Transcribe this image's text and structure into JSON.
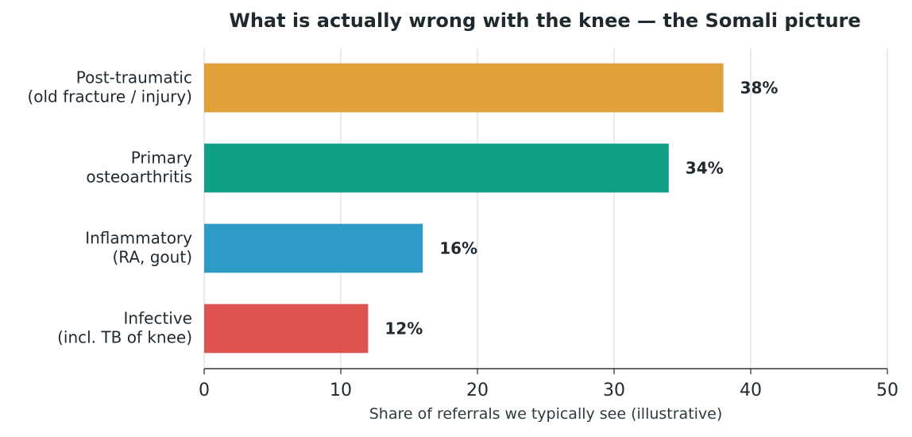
{
  "chart_data": {
    "type": "bar",
    "orientation": "horizontal",
    "title": "What is actually wrong with the knee — the Somali picture",
    "xlabel": "Share of referrals we typically see (illustrative)",
    "ylabel": "",
    "xlim": [
      0,
      50
    ],
    "x_ticks": [
      0,
      10,
      20,
      30,
      40,
      50
    ],
    "grid": "vertical",
    "categories": [
      [
        "Post-traumatic",
        "(old fracture / injury)"
      ],
      [
        "Primary",
        "osteoarthritis"
      ],
      [
        "Inflammatory",
        "(RA, gout)"
      ],
      [
        "Infective",
        "(incl. TB of knee)"
      ]
    ],
    "values": [
      38,
      34,
      16,
      12
    ],
    "value_labels": [
      "38%",
      "34%",
      "16%",
      "12%"
    ],
    "colors": [
      "#e0a03a",
      "#0fa087",
      "#2e9bc6",
      "#dc534f"
    ]
  }
}
